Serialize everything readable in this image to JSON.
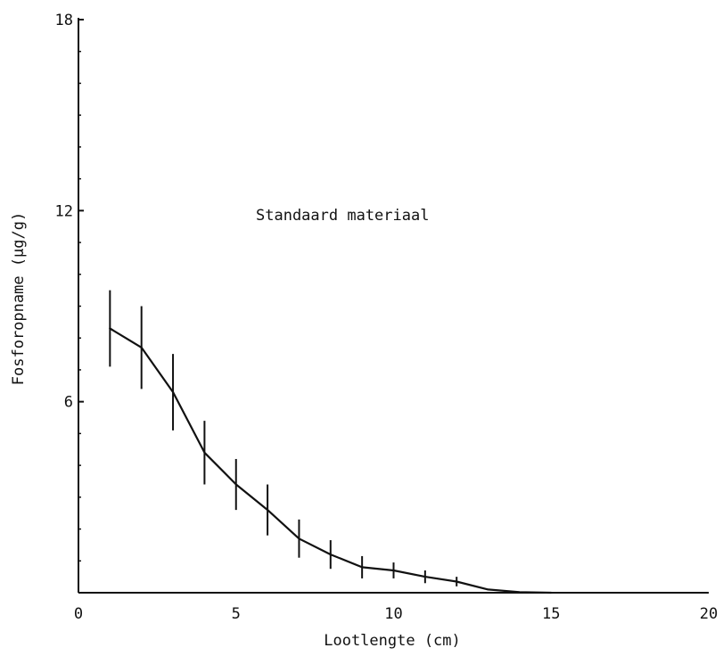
{
  "chart_data": {
    "type": "line",
    "title": "",
    "xlabel": "Lootlengte (cm)",
    "ylabel": "Fosforopname (µg/g)",
    "annotation": "Standaard materiaal",
    "xlim": [
      0,
      20
    ],
    "ylim": [
      0,
      18
    ],
    "x_ticks": [
      "0",
      "5",
      "10",
      "15",
      "20"
    ],
    "y_ticks": [
      "6",
      "12",
      "18"
    ],
    "grid": false,
    "error_bars": true,
    "series": [
      {
        "x": [
          1,
          2,
          3,
          4,
          5,
          6,
          7,
          8,
          9,
          10,
          11,
          12,
          13,
          14,
          15
        ],
        "y": [
          8.3,
          7.7,
          6.3,
          4.4,
          3.4,
          2.6,
          1.7,
          1.2,
          0.8,
          0.7,
          0.5,
          0.35,
          0.1,
          0.02,
          0.0
        ],
        "err": [
          1.2,
          1.3,
          1.2,
          1.0,
          0.8,
          0.8,
          0.6,
          0.45,
          0.35,
          0.25,
          0.2,
          0.15,
          0.0,
          0.0,
          0.0
        ]
      }
    ],
    "colors": {
      "line": "#111111",
      "axis": "#111111",
      "background": "#ffffff"
    }
  }
}
